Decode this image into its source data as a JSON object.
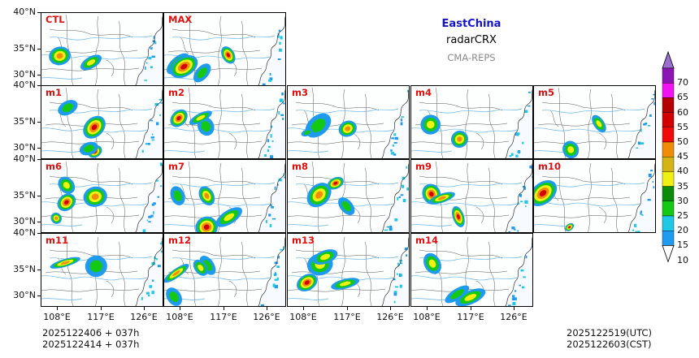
{
  "title": {
    "region": "EastChina",
    "variable": "radarCRX",
    "system": "CMA-REPS"
  },
  "lat_labels": [
    "40°N",
    "35°N",
    "30°N"
  ],
  "lon_labels": [
    "108°E",
    "117°E",
    "126°E"
  ],
  "panels": [
    {
      "label": "CTL"
    },
    {
      "label": "MAX"
    },
    {
      "label": "m1"
    },
    {
      "label": "m2"
    },
    {
      "label": "m3"
    },
    {
      "label": "m4"
    },
    {
      "label": "m5"
    },
    {
      "label": "m6"
    },
    {
      "label": "m7"
    },
    {
      "label": "m8"
    },
    {
      "label": "m9"
    },
    {
      "label": "m10"
    },
    {
      "label": "m11"
    },
    {
      "label": "m12"
    },
    {
      "label": "m13"
    },
    {
      "label": "m14"
    }
  ],
  "footer": {
    "init_utc": "2025122406  +  037h",
    "init_cst": "2025122414  +  037h",
    "valid_utc": "2025122519(UTC)",
    "valid_cst": "2025122603(CST)"
  },
  "colorbar": {
    "labels": [
      "70",
      "65",
      "60",
      "55",
      "50",
      "45",
      "40",
      "35",
      "30",
      "25",
      "20",
      "15",
      "10"
    ],
    "colors": [
      "#1e9bf0",
      "#1ec8e6",
      "#14c814",
      "#0a8c0a",
      "#f0f014",
      "#d4b414",
      "#f08c0a",
      "#f00a0a",
      "#d20000",
      "#b40000",
      "#f014f0",
      "#8c14b4"
    ],
    "over_color": "#9b6fd0",
    "under_color": "#ffffff"
  }
}
